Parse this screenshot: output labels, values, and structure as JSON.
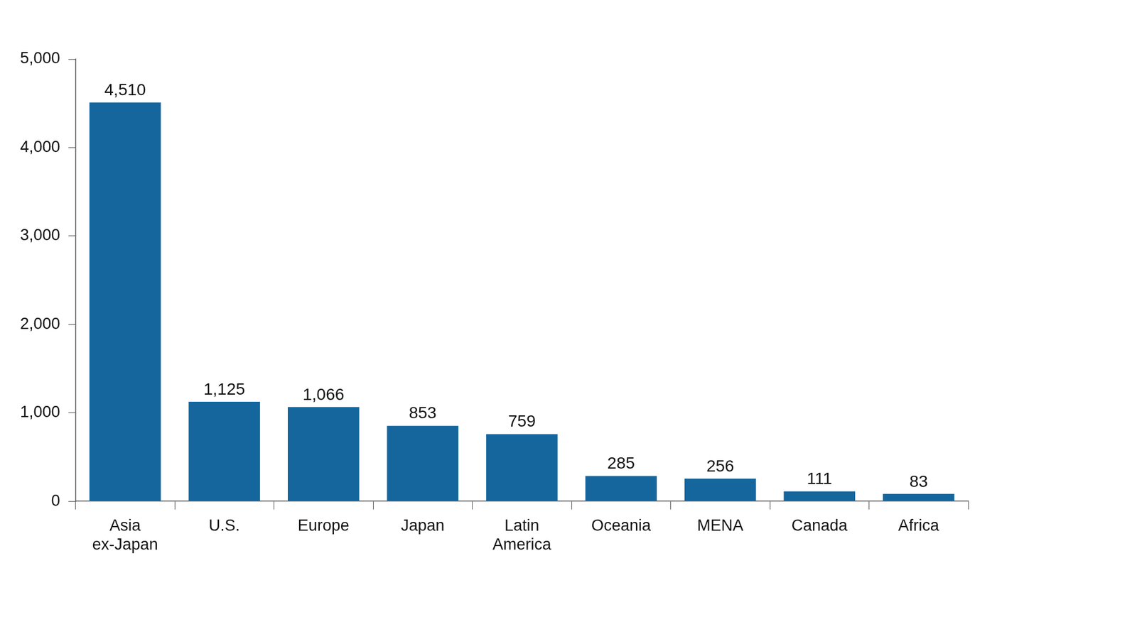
{
  "chart_data": {
    "type": "bar",
    "categories": [
      "Asia ex-Japan",
      "U.S.",
      "Europe",
      "Japan",
      "Latin America",
      "Oceania",
      "MENA",
      "Canada",
      "Africa"
    ],
    "values": [
      4510,
      1125,
      1066,
      853,
      759,
      285,
      256,
      111,
      83
    ],
    "value_labels": [
      "4,510",
      "1,125",
      "1,066",
      "853",
      "759",
      "285",
      "256",
      "111",
      "83"
    ],
    "data_labels": true,
    "color": "#15669d",
    "ylim": [
      0,
      5000
    ],
    "yticks": [
      0,
      {
        "value": 1000,
        "label": "1,000"
      },
      {
        "value": 2000,
        "label": "2,000"
      },
      {
        "value": 3000,
        "label": "3,000"
      },
      {
        "value": 4000,
        "label": "4,000"
      },
      {
        "value": 5000,
        "label": "5,000"
      }
    ],
    "grid": false
  }
}
